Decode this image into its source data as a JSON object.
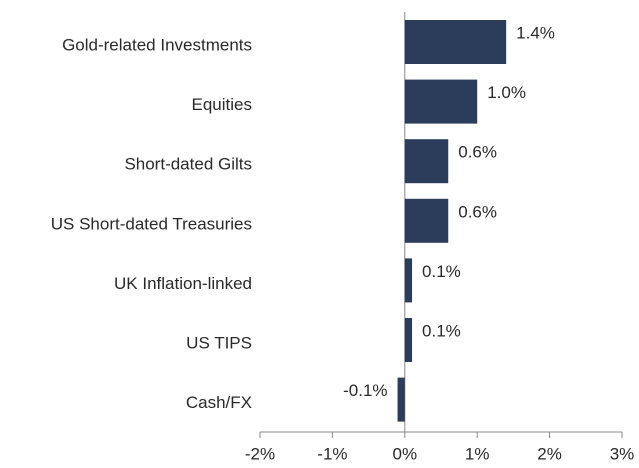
{
  "chart_data": {
    "type": "bar",
    "orientation": "horizontal",
    "categories": [
      "Gold-related Investments",
      "Equities",
      "Short-dated Gilts",
      "US Short-dated Treasuries",
      "UK Inflation-linked",
      "US TIPS",
      "Cash/FX"
    ],
    "values": [
      1.4,
      1.0,
      0.6,
      0.6,
      0.1,
      0.1,
      -0.1
    ],
    "value_labels": [
      "1.4%",
      "1.0%",
      "0.6%",
      "0.6%",
      "0.1%",
      "0.1%",
      "-0.1%"
    ],
    "color": "#2b3d5b",
    "xlim": [
      -2,
      3
    ],
    "xticks": [
      {
        "value": -2,
        "label": "-2%"
      },
      {
        "value": -1,
        "label": "-1%"
      },
      {
        "value": 0,
        "label": "0%"
      },
      {
        "value": 1,
        "label": "1%"
      },
      {
        "value": 2,
        "label": "2%"
      },
      {
        "value": 3,
        "label": "3%"
      }
    ]
  }
}
